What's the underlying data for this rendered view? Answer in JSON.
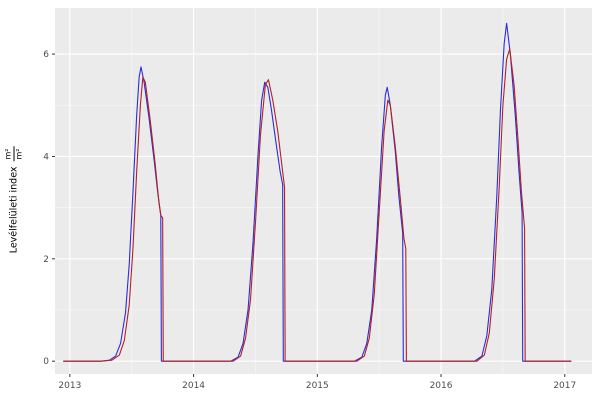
{
  "figure": {
    "ylabel_text": "Levélfelületi index",
    "ylabel_frac_num": "m²",
    "ylabel_frac_den": "m²"
  },
  "chart_data": {
    "type": "line",
    "title": "",
    "xlabel": "",
    "ylabel": "Levélfelületi index (m²/m²)",
    "x_domain": [
      2012.88,
      2017.22
    ],
    "y_domain": [
      -0.25,
      6.9
    ],
    "x_major_ticks": [
      2013,
      2014,
      2015,
      2016,
      2017
    ],
    "x_minor_ticks": [
      2013.5,
      2014.5,
      2015.5,
      2016.5
    ],
    "y_major_ticks": [
      0,
      2,
      4,
      6
    ],
    "y_minor_ticks": [
      1,
      3,
      5
    ],
    "grid": true,
    "legend": "none",
    "panel_bg": "#EBEBEB",
    "grid_major_color": "#FFFFFF",
    "grid_minor_color": "#F6F6F6",
    "axis_text_color": "#4D4D4D",
    "tick_mark_color": "#333333",
    "series": [
      {
        "name": "blue",
        "color": "#2B2BE0",
        "points": [
          [
            2012.95,
            0
          ],
          [
            2013.05,
            0
          ],
          [
            2013.15,
            0
          ],
          [
            2013.25,
            0
          ],
          [
            2013.32,
            0.02
          ],
          [
            2013.37,
            0.1
          ],
          [
            2013.41,
            0.35
          ],
          [
            2013.45,
            0.95
          ],
          [
            2013.48,
            1.9
          ],
          [
            2013.51,
            3.3
          ],
          [
            2013.54,
            4.8
          ],
          [
            2013.56,
            5.55
          ],
          [
            2013.575,
            5.75
          ],
          [
            2013.6,
            5.45
          ],
          [
            2013.64,
            4.75
          ],
          [
            2013.68,
            3.95
          ],
          [
            2013.71,
            3.3
          ],
          [
            2013.735,
            2.85
          ],
          [
            2013.74,
            0
          ],
          [
            2013.9,
            0
          ],
          [
            2014.1,
            0
          ],
          [
            2014.3,
            0
          ],
          [
            2014.36,
            0.08
          ],
          [
            2014.4,
            0.35
          ],
          [
            2014.44,
            1.0
          ],
          [
            2014.48,
            2.3
          ],
          [
            2014.52,
            4.0
          ],
          [
            2014.55,
            5.1
          ],
          [
            2014.575,
            5.45
          ],
          [
            2014.6,
            5.35
          ],
          [
            2014.63,
            4.9
          ],
          [
            2014.67,
            4.2
          ],
          [
            2014.7,
            3.7
          ],
          [
            2014.72,
            3.45
          ],
          [
            2014.725,
            0
          ],
          [
            2014.9,
            0
          ],
          [
            2015.1,
            0
          ],
          [
            2015.3,
            0
          ],
          [
            2015.36,
            0.08
          ],
          [
            2015.4,
            0.35
          ],
          [
            2015.44,
            1.0
          ],
          [
            2015.48,
            2.4
          ],
          [
            2015.52,
            4.2
          ],
          [
            2015.55,
            5.2
          ],
          [
            2015.565,
            5.35
          ],
          [
            2015.59,
            5.0
          ],
          [
            2015.63,
            4.1
          ],
          [
            2015.66,
            3.2
          ],
          [
            2015.69,
            2.5
          ],
          [
            2015.695,
            0
          ],
          [
            2015.9,
            0
          ],
          [
            2016.1,
            0
          ],
          [
            2016.27,
            0
          ],
          [
            2016.33,
            0.1
          ],
          [
            2016.37,
            0.5
          ],
          [
            2016.41,
            1.4
          ],
          [
            2016.45,
            3.2
          ],
          [
            2016.48,
            4.9
          ],
          [
            2016.51,
            6.2
          ],
          [
            2016.53,
            6.6
          ],
          [
            2016.56,
            6.0
          ],
          [
            2016.6,
            4.8
          ],
          [
            2016.63,
            3.7
          ],
          [
            2016.655,
            2.9
          ],
          [
            2016.66,
            0
          ],
          [
            2016.8,
            0
          ],
          [
            2017.0,
            0
          ],
          [
            2017.05,
            0
          ]
        ]
      },
      {
        "name": "red",
        "color": "#B22222",
        "points": [
          [
            2012.95,
            0
          ],
          [
            2013.1,
            0
          ],
          [
            2013.25,
            0
          ],
          [
            2013.34,
            0.02
          ],
          [
            2013.4,
            0.12
          ],
          [
            2013.44,
            0.4
          ],
          [
            2013.48,
            1.1
          ],
          [
            2013.51,
            2.2
          ],
          [
            2013.54,
            3.7
          ],
          [
            2013.57,
            5.0
          ],
          [
            2013.59,
            5.55
          ],
          [
            2013.61,
            5.45
          ],
          [
            2013.65,
            4.7
          ],
          [
            2013.69,
            3.85
          ],
          [
            2013.72,
            3.1
          ],
          [
            2013.735,
            2.85
          ],
          [
            2013.75,
            2.8
          ],
          [
            2013.755,
            0
          ],
          [
            2013.9,
            0
          ],
          [
            2014.1,
            0
          ],
          [
            2014.32,
            0
          ],
          [
            2014.38,
            0.1
          ],
          [
            2014.42,
            0.45
          ],
          [
            2014.46,
            1.2
          ],
          [
            2014.5,
            2.7
          ],
          [
            2014.54,
            4.4
          ],
          [
            2014.58,
            5.4
          ],
          [
            2014.605,
            5.5
          ],
          [
            2014.64,
            5.1
          ],
          [
            2014.68,
            4.5
          ],
          [
            2014.71,
            3.9
          ],
          [
            2014.735,
            3.4
          ],
          [
            2014.74,
            0
          ],
          [
            2014.9,
            0
          ],
          [
            2015.1,
            0
          ],
          [
            2015.32,
            0
          ],
          [
            2015.38,
            0.1
          ],
          [
            2015.42,
            0.45
          ],
          [
            2015.46,
            1.3
          ],
          [
            2015.5,
            2.9
          ],
          [
            2015.54,
            4.5
          ],
          [
            2015.57,
            5.1
          ],
          [
            2015.59,
            5.0
          ],
          [
            2015.63,
            4.2
          ],
          [
            2015.67,
            3.2
          ],
          [
            2015.7,
            2.4
          ],
          [
            2015.715,
            2.2
          ],
          [
            2015.72,
            0
          ],
          [
            2015.9,
            0
          ],
          [
            2016.1,
            0
          ],
          [
            2016.29,
            0
          ],
          [
            2016.35,
            0.12
          ],
          [
            2016.39,
            0.55
          ],
          [
            2016.43,
            1.6
          ],
          [
            2016.47,
            3.4
          ],
          [
            2016.5,
            5.0
          ],
          [
            2016.53,
            5.9
          ],
          [
            2016.555,
            6.1
          ],
          [
            2016.59,
            5.4
          ],
          [
            2016.62,
            4.4
          ],
          [
            2016.65,
            3.3
          ],
          [
            2016.675,
            2.6
          ],
          [
            2016.68,
            0
          ],
          [
            2016.8,
            0
          ],
          [
            2017.0,
            0
          ],
          [
            2017.05,
            0
          ]
        ]
      }
    ]
  }
}
